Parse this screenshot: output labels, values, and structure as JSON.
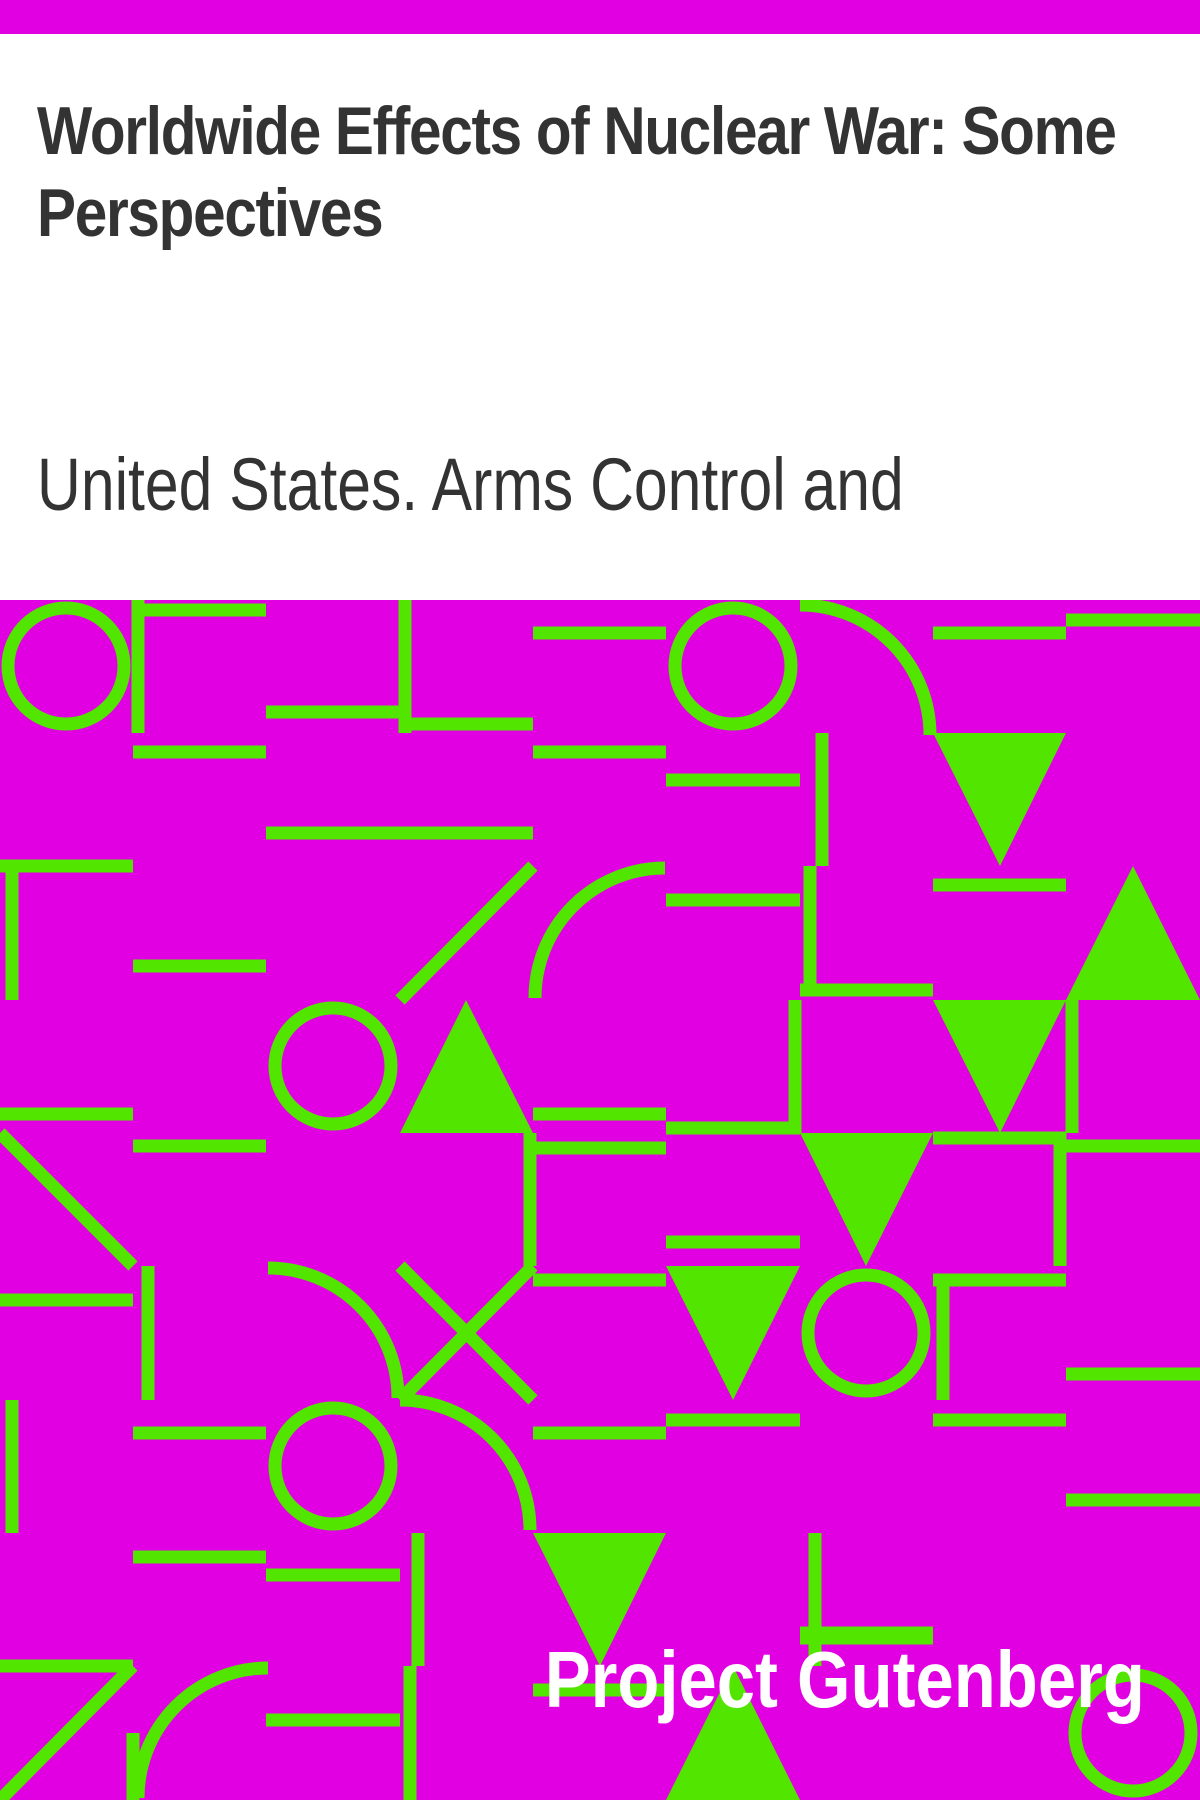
{
  "book": {
    "title": "Worldwide Effects of Nuclear War: Some Perspectives",
    "author": "United States. Arms Control and",
    "publisher": "Project Gutenberg"
  },
  "colors": {
    "accent": "#e100e1",
    "pattern": "#52e500",
    "text": "#333333",
    "background": "#ffffff",
    "publisher_text": "#ffffff"
  }
}
